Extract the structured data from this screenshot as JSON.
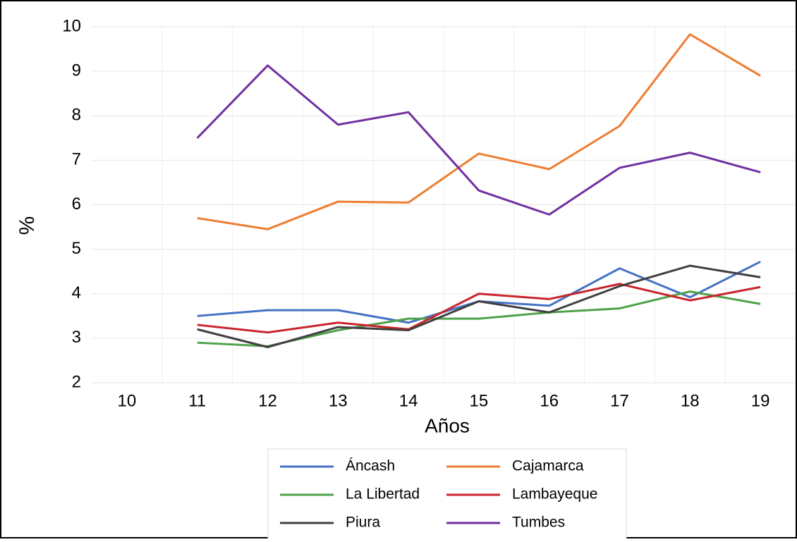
{
  "chart_data": {
    "type": "line",
    "x_label": "Años",
    "y_label": "%",
    "categories": [
      "10",
      "11",
      "12",
      "13",
      "14",
      "15",
      "16",
      "17",
      "18",
      "19"
    ],
    "series": [
      {
        "name": "Áncash",
        "color": "#4472c4",
        "values": [
          null,
          3.5,
          3.63,
          3.63,
          3.35,
          3.83,
          3.73,
          4.57,
          3.92,
          4.72
        ]
      },
      {
        "name": "Cajamarca",
        "color": "#ed7d31",
        "values": [
          null,
          5.7,
          5.45,
          6.07,
          6.05,
          7.15,
          6.8,
          7.77,
          9.83,
          8.9
        ]
      },
      {
        "name": "La Libertad",
        "color": "#4ea24a",
        "values": [
          null,
          2.9,
          2.82,
          3.18,
          3.44,
          3.44,
          3.58,
          3.67,
          4.05,
          3.77
        ]
      },
      {
        "name": "Lambayeque",
        "color": "#c9252c",
        "values": [
          null,
          3.3,
          3.13,
          3.35,
          3.2,
          4.0,
          3.88,
          4.22,
          3.85,
          4.15
        ]
      },
      {
        "name": "Piura",
        "color": "#404040",
        "values": [
          null,
          3.2,
          2.8,
          3.25,
          3.18,
          3.83,
          3.58,
          4.17,
          4.63,
          4.37
        ]
      },
      {
        "name": "Tumbes",
        "color": "#7030a0",
        "values": [
          null,
          7.5,
          9.13,
          7.8,
          8.08,
          6.32,
          5.78,
          6.83,
          7.17,
          6.73
        ]
      }
    ],
    "ylim": [
      2,
      10
    ],
    "yticks": [
      2,
      3,
      4,
      5,
      6,
      7,
      8,
      9,
      10
    ],
    "grid": true,
    "legend": "bottom"
  }
}
